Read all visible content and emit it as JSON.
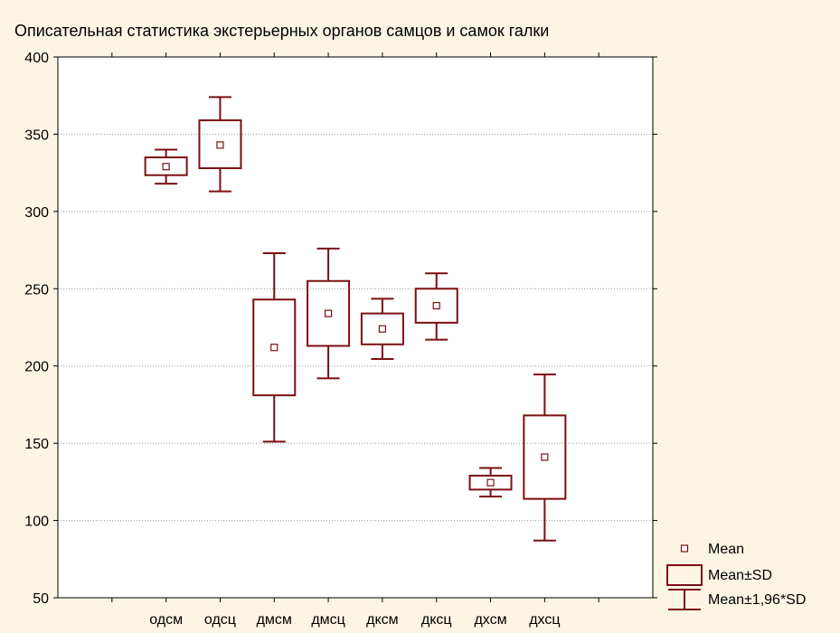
{
  "chart_data": {
    "type": "box",
    "title": "Описательная статистика экстерьерных органов самцов и самок галки",
    "xlabel": "",
    "ylabel": "",
    "ylim": [
      50,
      400
    ],
    "yticks": [
      50,
      100,
      150,
      200,
      250,
      300,
      350,
      400
    ],
    "grid": "horizontal dotted",
    "legend_position": "bottom-right",
    "color": "#7b0f14",
    "categories": [
      "одсм",
      "одсц",
      "дмсм",
      "дмсц",
      "дксм",
      "дксц",
      "дхсм",
      "дхсц"
    ],
    "mean": [
      329,
      343,
      212,
      234,
      224,
      239,
      124.5,
      141
    ],
    "mean_minus_sd": [
      323.5,
      328,
      181,
      213,
      214,
      228,
      120,
      114
    ],
    "mean_plus_sd": [
      335,
      359,
      243,
      255,
      234,
      250,
      129,
      168
    ],
    "whisker_low": [
      318,
      313,
      151,
      192,
      204.5,
      217,
      115.5,
      87
    ],
    "whisker_high": [
      340,
      374,
      273,
      276,
      243.5,
      260,
      134,
      194.5
    ]
  },
  "legend": {
    "mean": "Mean",
    "sd": "Mean±SD",
    "ci": "Mean±1,96*SD"
  }
}
